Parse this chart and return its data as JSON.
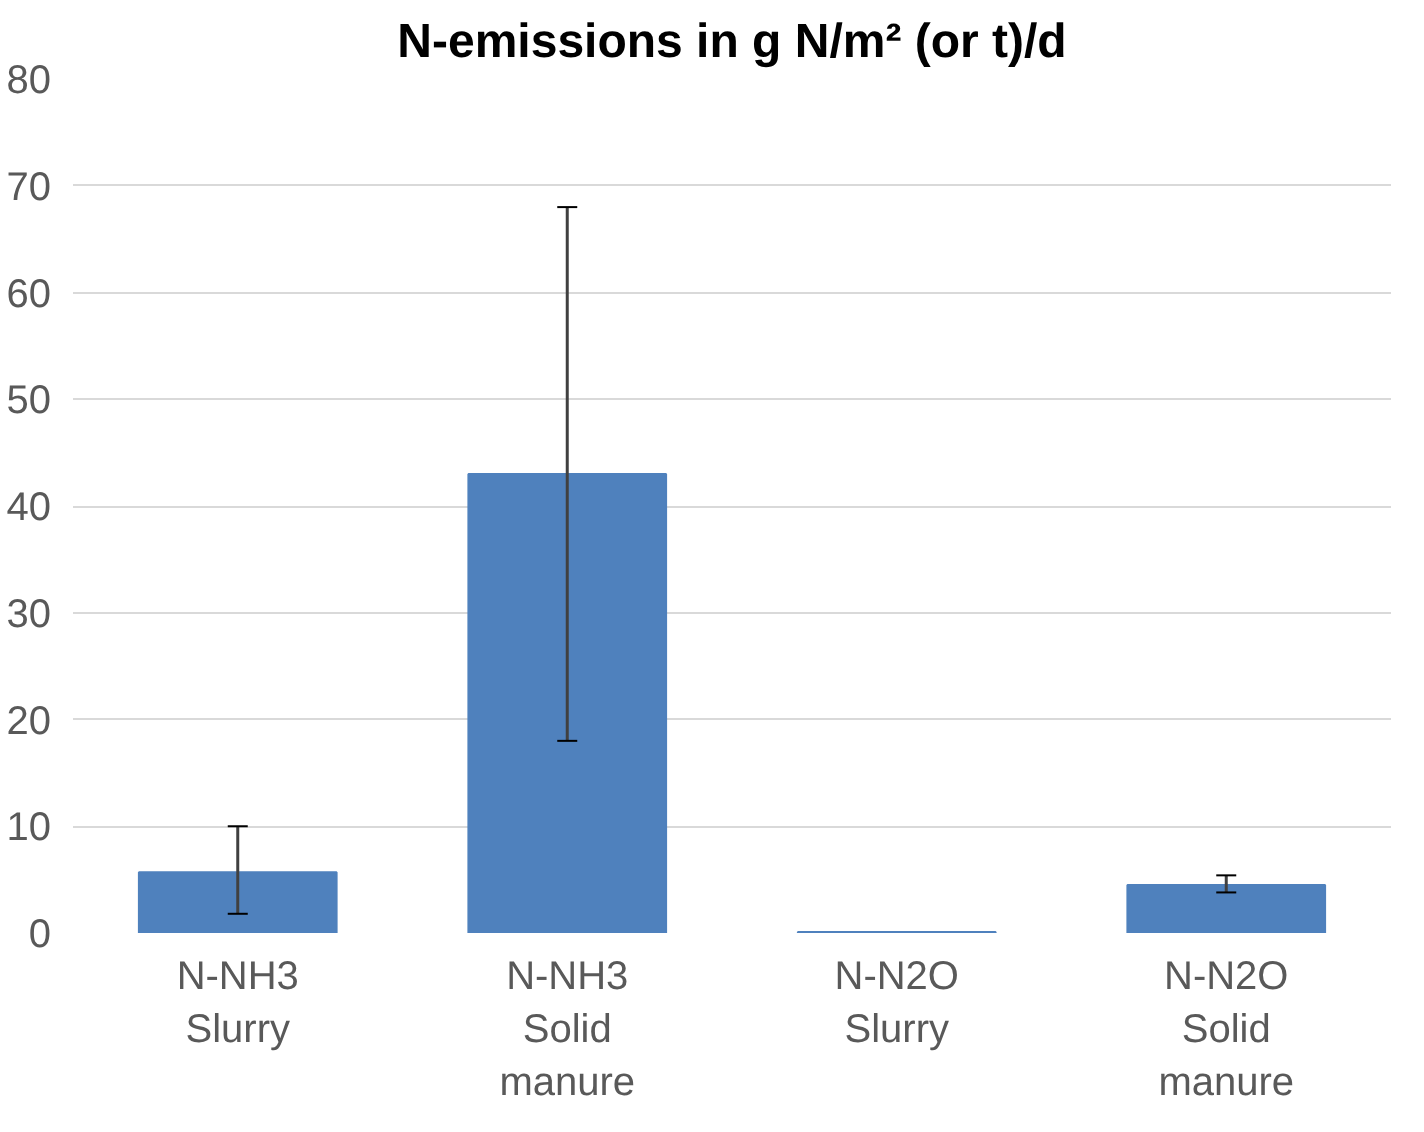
{
  "chart_data": {
    "type": "bar",
    "title": "N-emissions in g N/m² (or t)/d",
    "categories": [
      "N-NH3 Slurry",
      "N-NH3 Solid manure",
      "N-N2O Slurry",
      "N-N2O Solid manure"
    ],
    "values": [
      5.7,
      43,
      0.1,
      4.5
    ],
    "errors": [
      [
        1.8,
        10
      ],
      [
        18,
        68
      ],
      null,
      [
        3.8,
        5.4
      ]
    ],
    "color": "#4f81bd",
    "ylim": [
      0,
      80
    ],
    "yticks": [
      0,
      10,
      20,
      30,
      40,
      50,
      60,
      70,
      80
    ],
    "grid": "y"
  }
}
